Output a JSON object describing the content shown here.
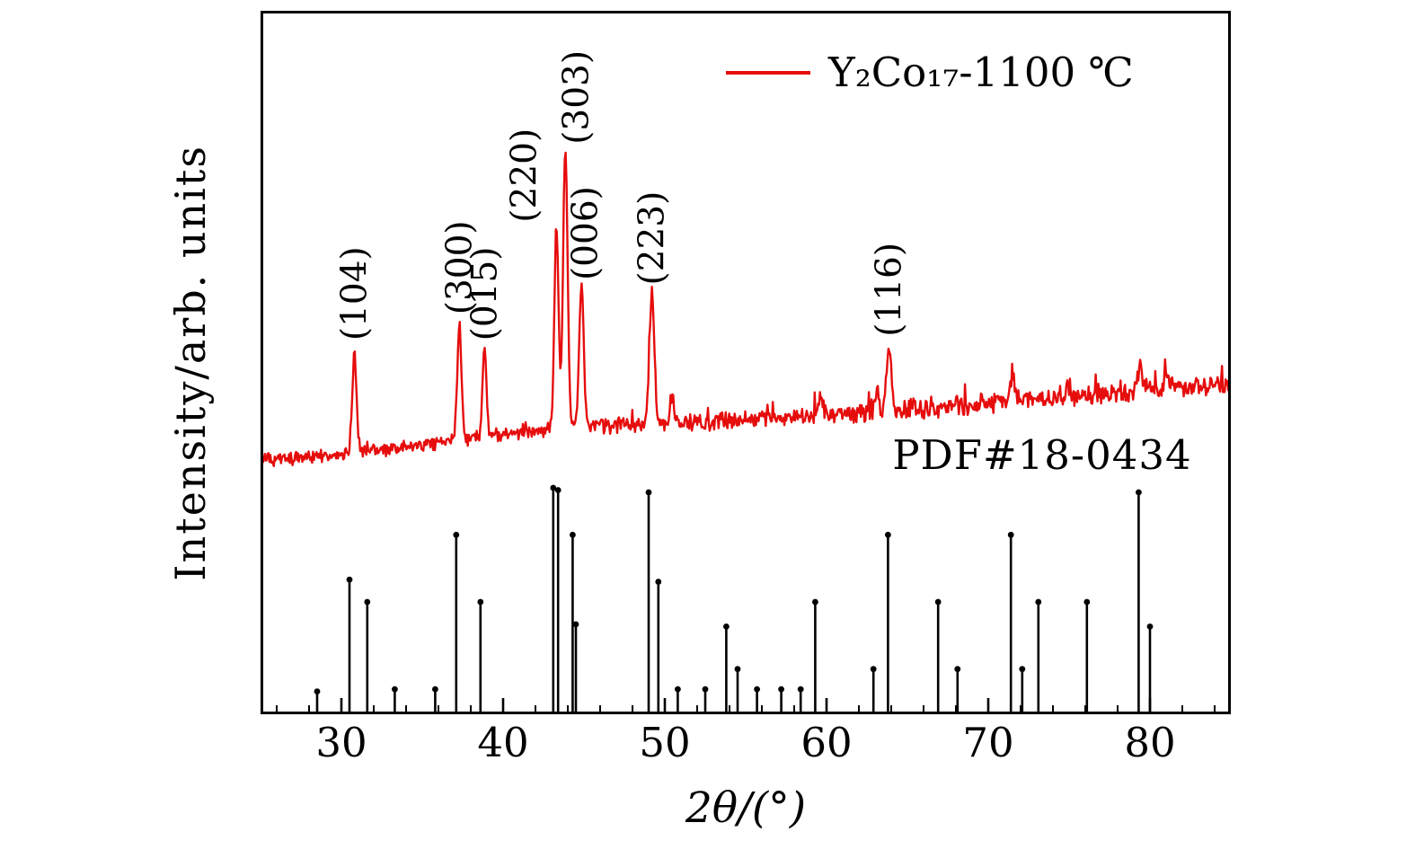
{
  "figure": {
    "background": "#ffffff",
    "frame_color": "#000000"
  },
  "chart_data": {
    "type": "line",
    "title": "",
    "xlabel": "2θ/(°)",
    "ylabel": "Intensity/arb. units",
    "xlim": [
      25,
      85
    ],
    "x_ticks": [
      30,
      40,
      50,
      60,
      70,
      80
    ],
    "x_minor_tick_step": 2,
    "grid": false,
    "legend": {
      "position": "top-right",
      "entries": [
        {
          "label": "Y₂Co₁₇-1100 ℃",
          "color": "#e60d0d"
        }
      ]
    },
    "annotations": [
      {
        "text": "PDF#18-0434",
        "x": 71,
        "y_fraction": 0.37
      }
    ],
    "series": [
      {
        "name": "Y₂Co₁₇-1100 ℃",
        "color": "#e60d0d",
        "line_width": 2.4,
        "baseline": {
          "start": 0.36,
          "end": 0.47
        },
        "background_hump": {
          "center": 44,
          "amplitude": 0.012,
          "sigma": 7
        },
        "noise": {
          "start": 0.011,
          "end": 0.018
        },
        "peaks": [
          {
            "hkl": "(104)",
            "two_theta": 30.8,
            "amplitude": 0.14,
            "sigma": 0.13,
            "label_dx": 0
          },
          {
            "hkl": "(300)",
            "two_theta": 37.3,
            "amplitude": 0.165,
            "sigma": 0.13,
            "label_dx": 0
          },
          {
            "hkl": "(015)",
            "two_theta": 38.85,
            "amplitude": 0.125,
            "sigma": 0.12,
            "label_dx": 0
          },
          {
            "hkl": "(220)",
            "two_theta": 43.3,
            "amplitude": 0.285,
            "sigma": 0.13,
            "label_dx": -36
          },
          {
            "hkl": "(303)",
            "two_theta": 43.85,
            "amplitude": 0.395,
            "sigma": 0.14,
            "label_dx": 12
          },
          {
            "hkl": "(006)",
            "two_theta": 44.85,
            "amplitude": 0.2,
            "sigma": 0.14,
            "label_dx": 4
          },
          {
            "hkl": "(223)",
            "two_theta": 49.2,
            "amplitude": 0.185,
            "sigma": 0.15,
            "label_dx": 0
          },
          {
            "hkl": "(116)",
            "two_theta": 63.85,
            "amplitude": 0.085,
            "sigma": 0.16,
            "label_dx": 0
          }
        ],
        "minor_bumps": [
          [
            50.45,
            0.035
          ],
          [
            59.6,
            0.028
          ],
          [
            63.1,
            0.028
          ],
          [
            71.5,
            0.032
          ],
          [
            75.0,
            0.015
          ],
          [
            79.4,
            0.04
          ],
          [
            81.0,
            0.02
          ]
        ]
      }
    ],
    "reference_pattern": {
      "name": "PDF#18-0434",
      "color": "#000000",
      "max_height_fraction": 0.318,
      "sticks": [
        [
          28.5,
          0.09
        ],
        [
          30.5,
          0.59
        ],
        [
          31.6,
          0.49
        ],
        [
          33.3,
          0.1
        ],
        [
          35.8,
          0.1
        ],
        [
          37.1,
          0.79
        ],
        [
          38.6,
          0.49
        ],
        [
          43.1,
          1.0
        ],
        [
          43.4,
          0.99
        ],
        [
          44.3,
          0.79
        ],
        [
          44.5,
          0.39
        ],
        [
          49.0,
          0.98
        ],
        [
          49.6,
          0.58
        ],
        [
          50.8,
          0.1
        ],
        [
          52.5,
          0.1
        ],
        [
          53.8,
          0.38
        ],
        [
          54.5,
          0.19
        ],
        [
          55.7,
          0.1
        ],
        [
          57.2,
          0.1
        ],
        [
          58.4,
          0.1
        ],
        [
          59.3,
          0.49
        ],
        [
          62.9,
          0.19
        ],
        [
          63.8,
          0.79
        ],
        [
          66.9,
          0.49
        ],
        [
          68.1,
          0.19
        ],
        [
          71.4,
          0.79
        ],
        [
          72.1,
          0.19
        ],
        [
          73.1,
          0.49
        ],
        [
          76.1,
          0.49
        ],
        [
          79.3,
          0.98
        ],
        [
          80.0,
          0.38
        ]
      ]
    }
  }
}
